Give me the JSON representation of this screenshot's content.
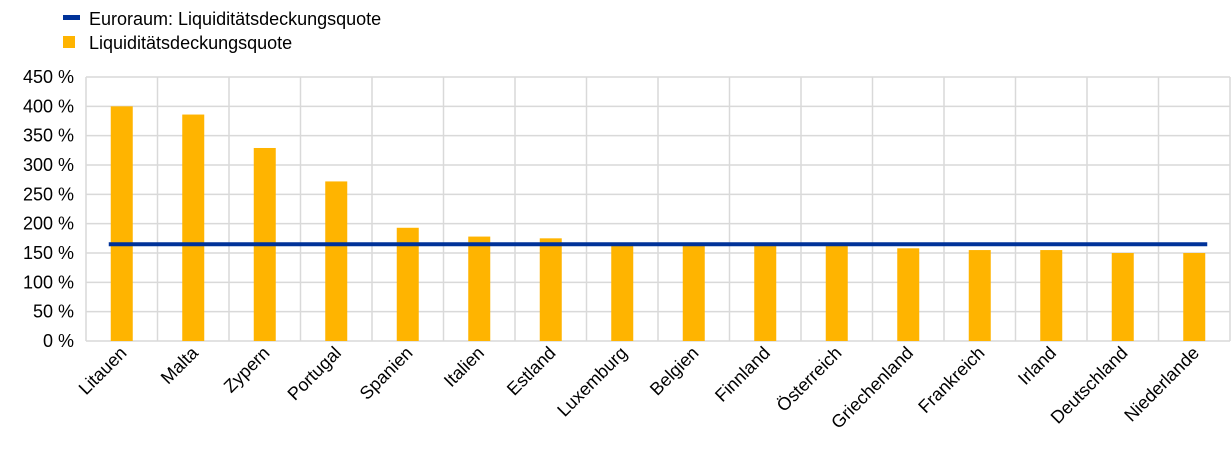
{
  "chart_data": {
    "type": "bar",
    "categories": [
      "Litauen",
      "Malta",
      "Zypern",
      "Portugal",
      "Spanien",
      "Italien",
      "Estland",
      "Luxemburg",
      "Belgien",
      "Finnland",
      "Österreich",
      "Griechenland",
      "Frankreich",
      "Irland",
      "Deutschland",
      "Niederlande"
    ],
    "series": [
      {
        "name": "Liquiditätsdeckungsquote",
        "type": "bar",
        "color": "#FFB400",
        "values": [
          400,
          386,
          329,
          272,
          193,
          178,
          175,
          165,
          164,
          163,
          163,
          158,
          155,
          155,
          150,
          150
        ]
      },
      {
        "name": "Euroraum: Liquiditätsdeckungsquote",
        "type": "line",
        "color": "#003299",
        "values": [
          165,
          165,
          165,
          165,
          165,
          165,
          165,
          165,
          165,
          165,
          165,
          165,
          165,
          165,
          165,
          165
        ]
      }
    ],
    "yticks": [
      "450 %",
      "400 %",
      "350 %",
      "300 %",
      "250 %",
      "200 %",
      "150 %",
      "100 %",
      "50 %",
      "0 %"
    ],
    "ylim": [
      0,
      450
    ],
    "grid": true,
    "legend": "top-left",
    "title": "",
    "xlabel": "",
    "ylabel": ""
  }
}
